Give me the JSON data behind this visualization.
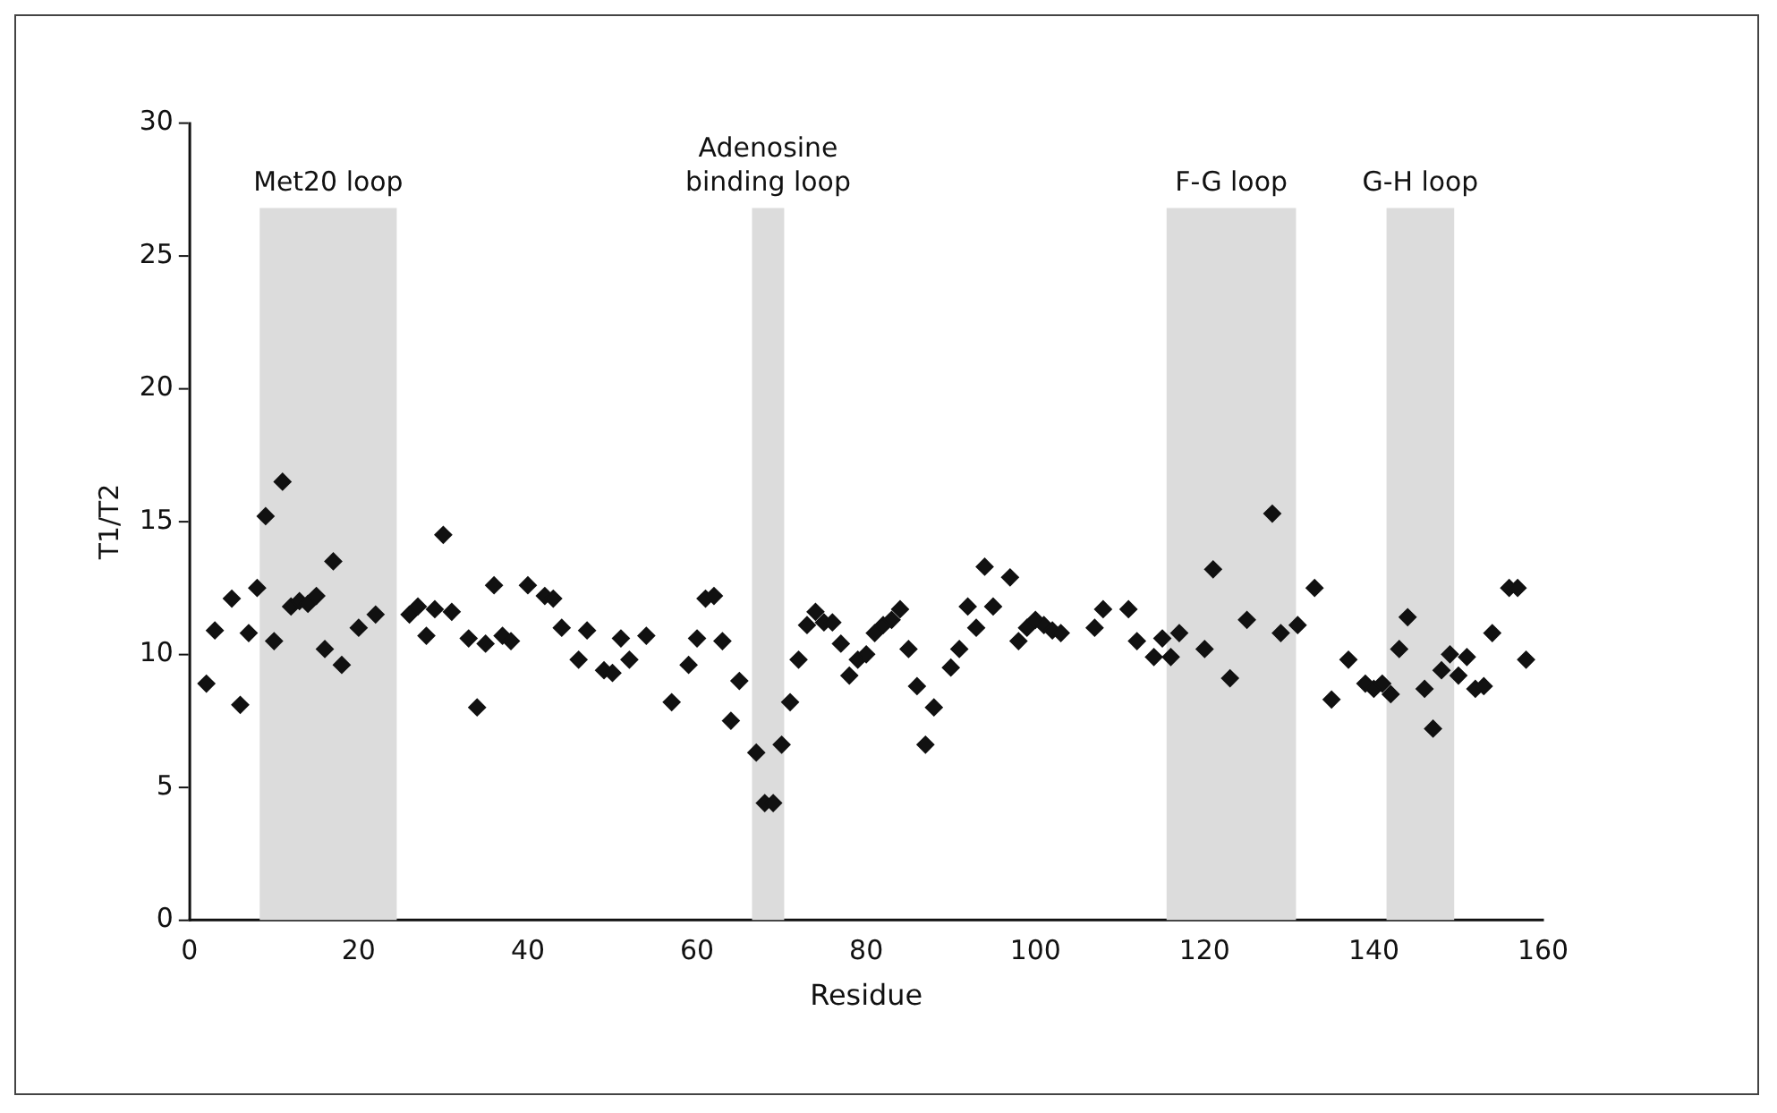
{
  "chart_data": {
    "type": "scatter",
    "xlabel": "Residue",
    "ylabel": "T1/T2",
    "marker": "diamond",
    "grid": false,
    "legend": false,
    "xlim": [
      0,
      160
    ],
    "xticks": [
      0,
      20,
      40,
      60,
      80,
      100,
      120,
      140,
      160
    ],
    "ylim": [
      0,
      30
    ],
    "yticks": [
      0,
      5,
      10,
      15,
      20,
      25,
      30
    ],
    "bands": [
      {
        "axis": "x",
        "from": 8.3,
        "to": 24.5,
        "label": "Met20 loop",
        "color": "#dcdcdc"
      },
      {
        "axis": "x",
        "from": 66.5,
        "to": 70.3,
        "label": "Adenosine binding loop",
        "color": "#dcdcdc"
      },
      {
        "axis": "x",
        "from": 115.5,
        "to": 130.8,
        "label": "F-G loop",
        "color": "#dcdcdc"
      },
      {
        "axis": "x",
        "from": 141.5,
        "to": 149.5,
        "label": "G-H loop",
        "color": "#dcdcdc"
      }
    ],
    "series": [
      {
        "color": "#111111",
        "x": [
          2,
          3,
          5,
          6,
          7,
          8,
          9,
          10,
          11,
          12,
          13,
          14,
          15,
          16,
          17,
          18,
          20,
          22,
          26,
          27,
          28,
          29,
          30,
          31,
          33,
          34,
          35,
          36,
          37,
          38,
          40,
          42,
          43,
          44,
          46,
          47,
          49,
          50,
          51,
          52,
          54,
          57,
          59,
          60,
          61,
          62,
          63,
          64,
          65,
          67,
          68,
          69,
          70,
          71,
          72,
          73,
          74,
          75,
          76,
          77,
          78,
          79,
          80,
          81,
          82,
          83,
          84,
          85,
          86,
          87,
          88,
          90,
          91,
          92,
          93,
          94,
          95,
          97,
          98,
          99,
          100,
          101,
          102,
          103,
          107,
          108,
          111,
          112,
          114,
          115,
          116,
          117,
          120,
          121,
          123,
          125,
          128,
          129,
          131,
          133,
          135,
          137,
          139,
          140,
          141,
          142,
          143,
          144,
          146,
          147,
          148,
          149,
          150,
          151,
          152,
          153,
          154,
          156,
          157,
          158
        ],
        "values": [
          8.9,
          10.9,
          12.1,
          8.1,
          10.8,
          12.5,
          15.2,
          10.5,
          16.5,
          11.8,
          12.0,
          11.9,
          12.2,
          10.2,
          13.5,
          9.6,
          11.0,
          11.5,
          11.5,
          11.8,
          10.7,
          11.7,
          14.5,
          11.6,
          10.6,
          8.0,
          10.4,
          12.6,
          10.7,
          10.5,
          12.6,
          12.2,
          12.1,
          11.0,
          9.8,
          10.9,
          9.4,
          9.3,
          10.6,
          9.8,
          10.7,
          8.2,
          9.6,
          10.6,
          12.1,
          12.2,
          10.5,
          7.5,
          9.0,
          6.3,
          4.4,
          4.4,
          6.6,
          8.2,
          9.8,
          11.1,
          11.6,
          11.2,
          11.2,
          10.4,
          9.2,
          9.8,
          10.0,
          10.8,
          11.1,
          11.3,
          11.7,
          10.2,
          8.8,
          6.6,
          8.0,
          9.5,
          10.2,
          11.8,
          11.0,
          13.3,
          11.8,
          12.9,
          10.5,
          11.0,
          11.3,
          11.1,
          10.9,
          10.8,
          11.0,
          11.7,
          11.7,
          10.5,
          9.9,
          10.6,
          9.9,
          10.8,
          10.2,
          13.2,
          9.1,
          11.3,
          15.3,
          10.8,
          11.1,
          12.5,
          8.3,
          9.8,
          8.9,
          8.7,
          8.9,
          8.5,
          10.2,
          11.4,
          8.7,
          7.2,
          9.4,
          10.0,
          9.2,
          9.9,
          8.7,
          8.8,
          10.8,
          12.5,
          12.5,
          9.8
        ]
      }
    ]
  }
}
